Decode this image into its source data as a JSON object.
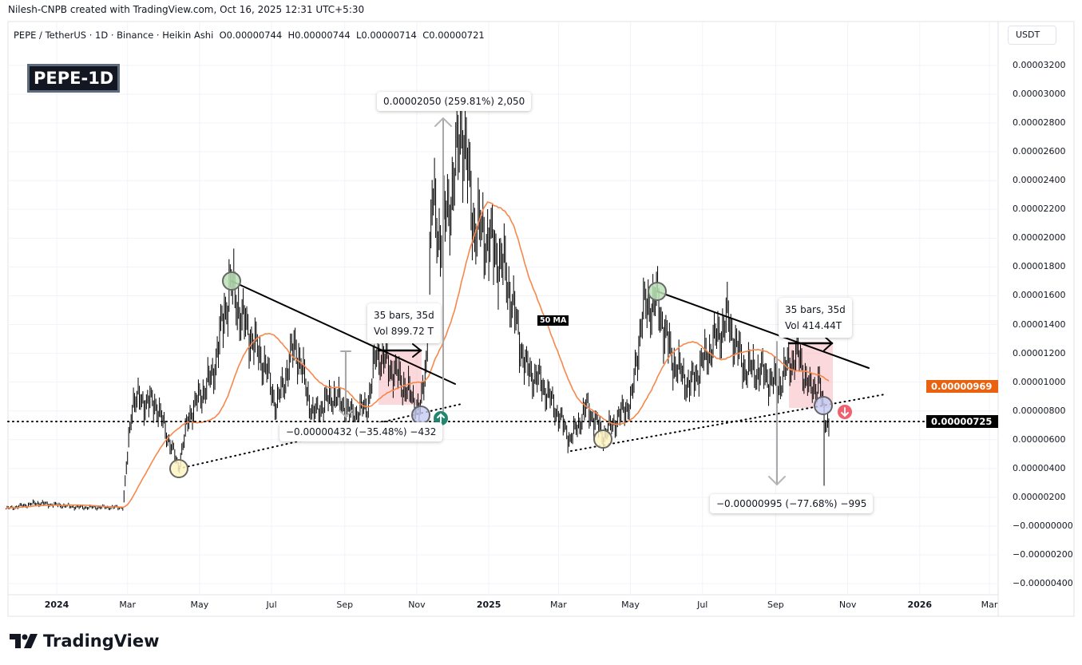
{
  "header": {
    "credit": "Nilesh-CNPB created with TradingView.com, Oct 16, 2025 12:31 UTC+5:30",
    "symbol_legend": "PEPE / TetherUS · 1D · Binance · Heikin Ashi",
    "ohlc": {
      "open": "O0.00000744",
      "high": "H0.00000744",
      "low": "L0.00000714",
      "close": "C0.00000721"
    },
    "badge": "PEPE-1D"
  },
  "price_axis": {
    "currency": "USDT",
    "ticks": [
      "0.00003200",
      "0.00003000",
      "0.00002800",
      "0.00002600",
      "0.00002400",
      "0.00002200",
      "0.00002000",
      "0.00001800",
      "0.00001600",
      "0.00001400",
      "0.00001200",
      "0.00001000",
      "0.00000800",
      "0.00000600",
      "0.00000400",
      "0.00000200",
      "−0.00000000",
      "−0.00000200",
      "−0.00000400"
    ],
    "ma_label": "0.00000969",
    "last_price_label": "0.00000725",
    "colors": {
      "ma": "#f7874a",
      "ma_label_bg": "#e8620f",
      "last_label_bg": "#000000"
    }
  },
  "time_axis": {
    "ticks": [
      {
        "label": "2024",
        "date": "2024-01-01",
        "bold": true
      },
      {
        "label": "Mar",
        "date": "2024-03-01"
      },
      {
        "label": "May",
        "date": "2024-05-01"
      },
      {
        "label": "Jul",
        "date": "2024-07-01"
      },
      {
        "label": "Sep",
        "date": "2024-09-01"
      },
      {
        "label": "Nov",
        "date": "2024-11-01"
      },
      {
        "label": "2025",
        "date": "2025-01-01",
        "bold": true
      },
      {
        "label": "Mar",
        "date": "2025-03-01"
      },
      {
        "label": "May",
        "date": "2025-05-01"
      },
      {
        "label": "Jul",
        "date": "2025-07-01"
      },
      {
        "label": "Sep",
        "date": "2025-09-01"
      },
      {
        "label": "Nov",
        "date": "2025-11-01"
      },
      {
        "label": "2026",
        "date": "2026-01-01",
        "bold": true
      },
      {
        "label": "Mar",
        "date": "2026-03-01"
      }
    ]
  },
  "annotations": {
    "range1_bars": "35 bars, 35d",
    "range1_vol": "Vol 899.72 T",
    "range2_bars": "35 bars, 35d",
    "range2_vol": "Vol 414.44T",
    "measure_up": "0.00002050 (259.81%) 2,050",
    "measure_down1": "−0.00000432 (−35.48%) −432",
    "measure_down2": "−0.00000995 (−77.68%) −995",
    "ma_tag": "50 MA"
  },
  "chart_data": {
    "type": "candlestick",
    "style": "Heikin Ashi",
    "title": "PEPE / TetherUS · 1D · Binance",
    "ylim": [
      -5e-06,
      3.3e-05
    ],
    "grid": true,
    "moving_average": {
      "name": "50 MA",
      "period": 50,
      "color": "#f7874a"
    },
    "approx_closes": [
      [
        "2023-11-19",
        1.2e-06
      ],
      [
        "2023-12-15",
        1.6e-06
      ],
      [
        "2024-01-20",
        1.3e-06
      ],
      [
        "2024-02-26",
        1.3e-06
      ],
      [
        "2024-03-05",
        8.8e-06
      ],
      [
        "2024-03-25",
        8.5e-06
      ],
      [
        "2024-04-13",
        4.1e-06
      ],
      [
        "2024-04-22",
        7.7e-06
      ],
      [
        "2024-05-12",
        1.05e-05
      ],
      [
        "2024-05-27",
        1.69e-05
      ],
      [
        "2024-06-06",
        1.44e-05
      ],
      [
        "2024-06-26",
        1.1e-05
      ],
      [
        "2024-07-05",
        8.3e-06
      ],
      [
        "2024-07-21",
        1.27e-05
      ],
      [
        "2024-08-05",
        7.7e-06
      ],
      [
        "2024-08-22",
        9.1e-06
      ],
      [
        "2024-09-07",
        7.7e-06
      ],
      [
        "2024-09-20",
        8.3e-06
      ],
      [
        "2024-09-28",
        1.21e-05
      ],
      [
        "2024-10-15",
        1.05e-05
      ],
      [
        "2024-11-04",
        8e-06
      ],
      [
        "2024-11-09",
        1.16e-05
      ],
      [
        "2024-11-14",
        2.27e-05
      ],
      [
        "2024-11-21",
        1.99e-05
      ],
      [
        "2024-12-02",
        2.38e-05
      ],
      [
        "2024-12-09",
        2.82e-05
      ],
      [
        "2024-12-19",
        2.1e-05
      ],
      [
        "2025-01-01",
        1.99e-05
      ],
      [
        "2025-01-15",
        1.77e-05
      ],
      [
        "2025-02-01",
        1.1e-05
      ],
      [
        "2025-02-15",
        9.9e-06
      ],
      [
        "2025-03-01",
        7.7e-06
      ],
      [
        "2025-03-11",
        6e-06
      ],
      [
        "2025-03-25",
        8.3e-06
      ],
      [
        "2025-04-08",
        6.3e-06
      ],
      [
        "2025-04-22",
        7.7e-06
      ],
      [
        "2025-05-02",
        8.8e-06
      ],
      [
        "2025-05-11",
        1.49e-05
      ],
      [
        "2025-05-23",
        1.58e-05
      ],
      [
        "2025-06-05",
        1.16e-05
      ],
      [
        "2025-06-20",
        9.7e-06
      ],
      [
        "2025-07-10",
        1.27e-05
      ],
      [
        "2025-07-22",
        1.44e-05
      ],
      [
        "2025-08-05",
        1.1e-05
      ],
      [
        "2025-08-20",
        1.07e-05
      ],
      [
        "2025-09-03",
        9.7e-06
      ],
      [
        "2025-09-12",
        1.13e-05
      ],
      [
        "2025-09-20",
        1.19e-05
      ],
      [
        "2025-09-30",
        9.4e-06
      ],
      [
        "2025-10-08",
        1e-05
      ],
      [
        "2025-10-10",
        8.6e-06
      ],
      [
        "2025-10-12",
        7.4e-06
      ],
      [
        "2025-10-16",
        7.25e-06
      ]
    ],
    "last_close": 7.25e-06,
    "ma_value": 9.69e-06
  }
}
